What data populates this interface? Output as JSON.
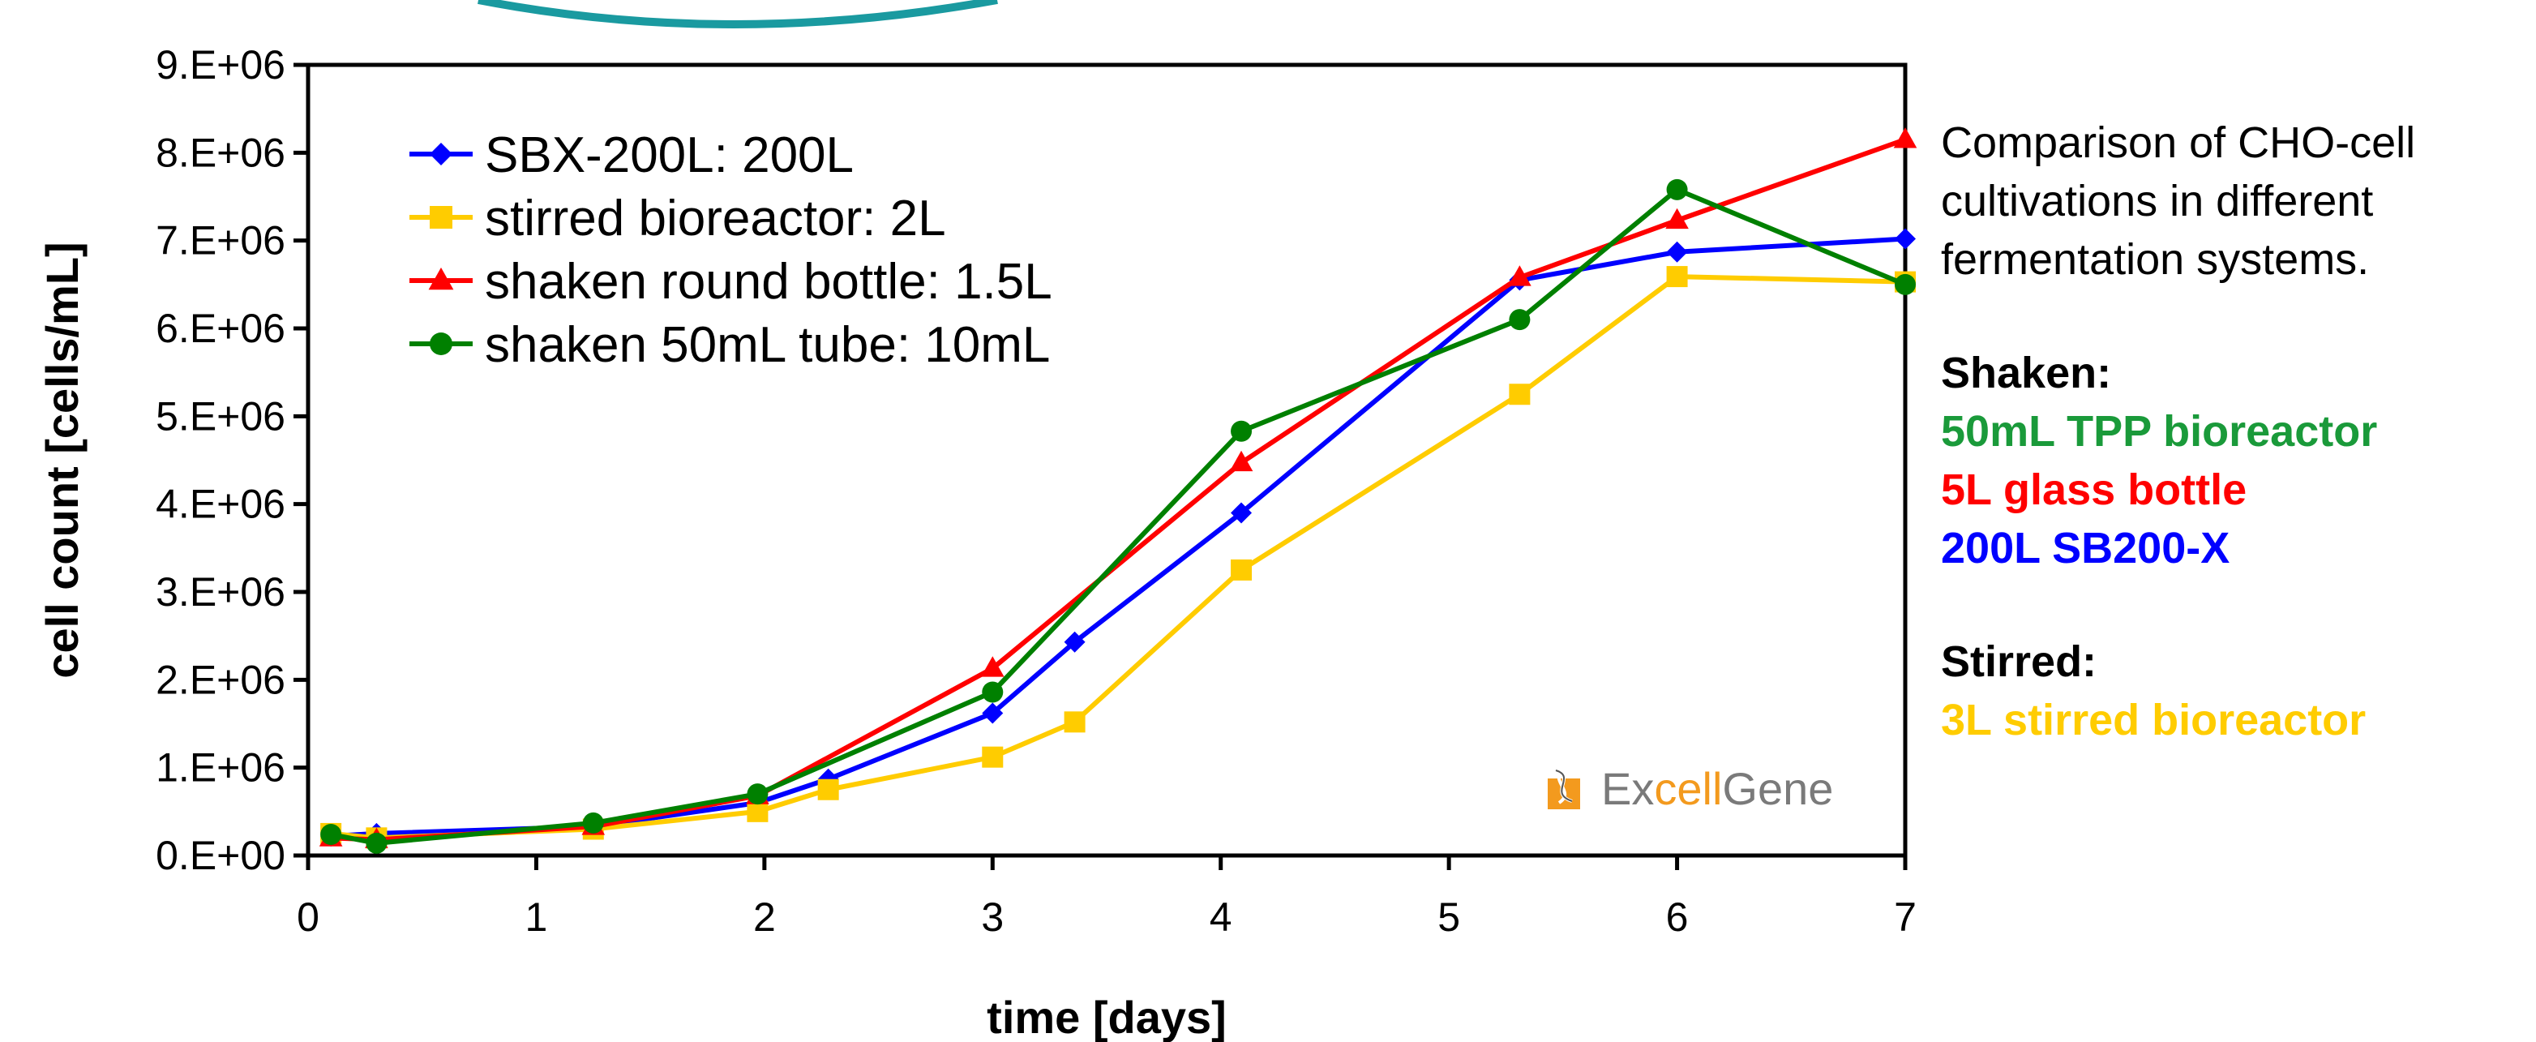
{
  "chart_data": {
    "type": "line",
    "xlabel": "time [days]",
    "ylabel": "cell count [cells/mL]",
    "xlim": [
      0,
      7
    ],
    "ylim": [
      0,
      9000000
    ],
    "xticks": [
      "0",
      "1",
      "2",
      "3",
      "4",
      "5",
      "6",
      "7"
    ],
    "yticks": [
      "0.E+00",
      "1.E+06",
      "2.E+06",
      "3.E+06",
      "4.E+06",
      "5.E+06",
      "6.E+06",
      "7.E+06",
      "8.E+06",
      "9.E+06"
    ],
    "grid": false,
    "legend_position": "top-left",
    "series": [
      {
        "name": "SBX-200L: 200L",
        "color": "#0000ff",
        "marker": "diamond",
        "x": [
          0.1,
          0.3,
          1.25,
          1.97,
          2.28,
          3.0,
          3.36,
          4.09,
          5.31,
          6.0,
          7.0
        ],
        "y": [
          220000,
          250000,
          330000,
          600000,
          870000,
          1620000,
          2430000,
          3900000,
          6550000,
          6870000,
          7020000
        ]
      },
      {
        "name": "stirred bioreactor: 2L",
        "color": "#ffcc00",
        "marker": "square",
        "x": [
          0.1,
          0.3,
          1.25,
          1.97,
          2.28,
          3.0,
          3.36,
          4.09,
          5.31,
          6.0,
          7.0
        ],
        "y": [
          250000,
          200000,
          300000,
          500000,
          750000,
          1120000,
          1520000,
          3250000,
          5250000,
          6590000,
          6530000
        ]
      },
      {
        "name": "shaken round bottle: 1.5L",
        "color": "#ff0000",
        "marker": "triangle",
        "x": [
          0.1,
          0.3,
          1.25,
          1.97,
          3.0,
          4.09,
          5.31,
          6.0,
          7.0
        ],
        "y": [
          200000,
          180000,
          330000,
          680000,
          2130000,
          4470000,
          6580000,
          7230000,
          8150000
        ]
      },
      {
        "name": "shaken 50mL tube: 10mL",
        "color": "#008000",
        "marker": "circle",
        "x": [
          0.1,
          0.3,
          1.25,
          1.97,
          3.0,
          4.09,
          5.31,
          6.0,
          7.0
        ],
        "y": [
          240000,
          140000,
          370000,
          700000,
          1860000,
          4830000,
          6100000,
          7580000,
          6500000
        ]
      }
    ]
  },
  "side_panel": {
    "description": [
      "Comparison of CHO-cell",
      "cultivations in different",
      "fermentation systems."
    ],
    "shaken_heading": "Shaken:",
    "shaken_items": [
      {
        "label": "50mL TPP bioreactor",
        "color": "#1a9a3a"
      },
      {
        "label": "5L glass bottle",
        "color": "#ff0000"
      },
      {
        "label": "200L SB200-X",
        "color": "#0000ff"
      }
    ],
    "stirred_heading": "Stirred:",
    "stirred_items": [
      {
        "label": "3L stirred bioreactor",
        "color": "#ffcc00"
      }
    ]
  },
  "logo": {
    "part1": "Ex",
    "part2": "cell",
    "part3": "Gene"
  },
  "decoration": {
    "ring_color": "#1a9aa0"
  }
}
